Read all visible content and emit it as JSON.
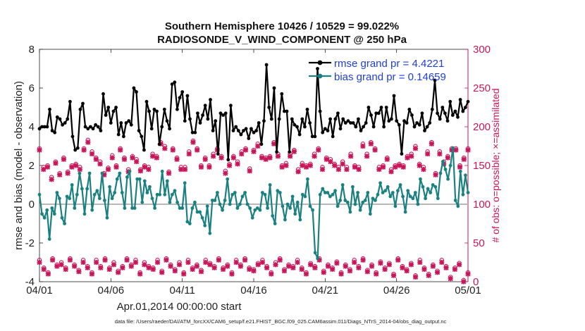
{
  "chart_data": {
    "type": "line",
    "title": "Southern Hemisphere 10426 / 10529 = 99.022%",
    "subtitle": "RADIOSONDE_V_WIND_COMPONENT @ 250 hPa",
    "xlabel": "Apr.01,2014 00:00:00 start",
    "ylabel": "rmse and bias (model - observation)",
    "y2label": "# of obs: o=possible; ×=assimilated",
    "footnote": "data file: /Users/raeder/DAI/ATM_forcXX/CAM6_setup/f.e21.FHIST_BGC.f09_025.CAM6assim.011/Diags_NTrS_2014-04/obs_diag_output.nc",
    "x_ticks": [
      "04/01",
      "04/06",
      "04/11",
      "04/16",
      "04/21",
      "04/26",
      "05/01"
    ],
    "xlim_days": [
      0,
      30
    ],
    "ylim": [
      -4,
      8
    ],
    "y_ticks": [
      "-4",
      "-2",
      "0",
      "2",
      "4",
      "6",
      "8"
    ],
    "y2lim": [
      0,
      300
    ],
    "y2_ticks": [
      "0",
      "50",
      "100",
      "150",
      "200",
      "250",
      "300"
    ],
    "colors": {
      "rmse": "#000000",
      "bias": "#1a8080",
      "obs": "#c8165a",
      "zero": "#b8b8b8",
      "legend_text": "#1f3fd6"
    },
    "series": [
      {
        "name": "rmse grand pr = 4.4221",
        "values": [
          3.9,
          4.0,
          4.0,
          4.0,
          4.9,
          3.8,
          3.7,
          4.5,
          4.4,
          4.1,
          4.2,
          4.4,
          5.3,
          3.5,
          2.8,
          2.9,
          4.9,
          5.2,
          4.0,
          3.9,
          4.0,
          3.9,
          4.1,
          4.0,
          3.8,
          5.7,
          4.6,
          5.0,
          4.2,
          4.8,
          5.0,
          3.6,
          4.2,
          3.5,
          4.2,
          4.3,
          4.1,
          6.0,
          5.8,
          3.8,
          3.5,
          2.8,
          5.3,
          4.8,
          3.9,
          4.9,
          4.8,
          3.1,
          4.0,
          4.9,
          4.3,
          3.9,
          6.2,
          6.3,
          4.9,
          5.5,
          5.8,
          4.3,
          5.6,
          4.4,
          3.7,
          3.7,
          4.7,
          4.2,
          4.6,
          5.1,
          4.4,
          5.4,
          3.8,
          4.3,
          2.6,
          4.7,
          4.6,
          4.7,
          2.3,
          5.1,
          3.8,
          4.0,
          3.8,
          3.6,
          3.8,
          3.9,
          3.4,
          3.9,
          3.7,
          3.8,
          4.2,
          3.1,
          4.3,
          7.2,
          5.0,
          4.4,
          6.0,
          2.7,
          4.4,
          5.7,
          4.8,
          4.8,
          2.7,
          4.4,
          4.1,
          4.0,
          3.6,
          4.4,
          4.0,
          4.9,
          4.2,
          3.5,
          3.5,
          7.0,
          4.8,
          3.7,
          3.9,
          3.8,
          4.4,
          3.5,
          4.4,
          4.7,
          3.9,
          4.4,
          4.2,
          4.3,
          4.2,
          4.2,
          4.0,
          4.4,
          3.8,
          4.0,
          4.2,
          5.0,
          4.6,
          4.0,
          4.7,
          4.7,
          5.0,
          4.0,
          5.0,
          4.3,
          4.4,
          5.6,
          4.3,
          4.1,
          2.6,
          4.3,
          4.2,
          4.9,
          4.6,
          4.0,
          4.2,
          4.1,
          4.7,
          3.8,
          4.0,
          4.2,
          4.9,
          6.4,
          4.7,
          4.4,
          5.0,
          4.7,
          4.3,
          5.3,
          4.6,
          4.8,
          4.5,
          5.4,
          4.8,
          5.0,
          5.3
        ]
      },
      {
        "name": "bias grand pr = 0.14659",
        "values": [
          0.5,
          -0.5,
          -0.7,
          -0.3,
          -1.8,
          -0.2,
          -0.5,
          0.6,
          0.3,
          -0.7,
          -1.0,
          0.4,
          0.3,
          1.0,
          -0.2,
          0.5,
          1.6,
          0.8,
          -0.5,
          0.8,
          1.6,
          -0.3,
          0.5,
          0.7,
          0.3,
          1.6,
          0.2,
          -0.7,
          0.9,
          0.3,
          0.6,
          1.3,
          1.6,
          0.6,
          -0.2,
          1.4,
          1.7,
          -0.2,
          -0.2,
          1.3,
          1.3,
          0.1,
          1.2,
          0.6,
          0.9,
          0.3,
          -0.2,
          0.5,
          0.5,
          1.7,
          0.5,
          1.2,
          0.1,
          0.5,
          0.7,
          0.1,
          -0.2,
          -0.2,
          1.1,
          -0.9,
          -1.0,
          -0.2,
          0.1,
          -0.4,
          -0.4,
          -0.7,
          -1.1,
          -0.1,
          -1.5,
          0.2,
          0.2,
          0.6,
          0.0,
          -0.3,
          0.2,
          1.3,
          0.0,
          0.5,
          0.6,
          -0.2,
          0.0,
          0.4,
          0.6,
          0.0,
          -0.2,
          -0.7,
          -0.3,
          -0.2,
          -0.3,
          0.6,
          0.5,
          -0.2,
          1.0,
          -0.6,
          -1.0,
          0.7,
          0.6,
          -0.1,
          -0.8,
          0.0,
          -0.2,
          0.4,
          -0.5,
          0.1,
          -0.8,
          0.5,
          0.4,
          1.3,
          -0.1,
          -0.3,
          -2.5,
          -2.8,
          0.5,
          0.8,
          0.6,
          0.6,
          0.4,
          0.5,
          0.7,
          -0.1,
          0.2,
          1.0,
          0.2,
          0.1,
          -0.4,
          0.9,
          0.0,
          0.6,
          -0.3,
          0.1,
          0.2,
          0.6,
          -0.5,
          0.3,
          0.2,
          0.5,
          1.1,
          0.6,
          0.7,
          0.9,
          0.4,
          0.6,
          -0.1,
          0.7,
          1.0,
          0.4,
          -0.4,
          0.7,
          0.4,
          0.3,
          0.6,
          0.0,
          1.3,
          0.9,
          0.3,
          0.8,
          0.6,
          1.0,
          0.9,
          0.3,
          1.6,
          2.2,
          1.8,
          1.3,
          2.0,
          2.9,
          0.2,
          -0.1,
          1.7,
          0.5,
          1.5,
          0.6
        ]
      }
    ],
    "obs_possible_high": [
      172,
      148,
      150,
      135,
      155,
      140,
      160,
      142,
      150,
      152,
      148,
      172,
      183,
      168,
      160,
      155,
      140,
      147,
      163,
      150,
      172,
      160,
      145,
      162,
      158,
      145,
      150,
      148,
      165,
      162,
      180,
      175,
      142,
      172,
      160,
      148,
      148,
      168,
      182,
      172,
      150,
      160,
      150,
      165,
      172,
      162,
      143,
      152,
      162,
      155,
      168,
      172,
      146,
      170,
      178,
      162,
      160,
      162,
      180,
      165,
      150,
      153,
      165,
      170,
      145,
      153,
      150,
      152,
      165,
      172,
      148,
      160,
      158,
      152,
      148,
      155,
      148,
      165,
      150,
      148,
      178,
      165,
      180,
      172,
      148,
      150,
      160,
      145,
      150,
      152,
      150,
      162,
      165,
      175,
      152,
      148,
      168,
      180,
      140,
      168,
      155,
      162,
      172,
      172,
      150,
      160,
      172
    ],
    "obs_assimilated_high": [
      170,
      145,
      148,
      132,
      153,
      138,
      158,
      140,
      148,
      150,
      145,
      170,
      180,
      165,
      158,
      152,
      138,
      145,
      160,
      148,
      170,
      158,
      142,
      160,
      155,
      143,
      148,
      145,
      162,
      160,
      178,
      172,
      140,
      170,
      158,
      145,
      145,
      165,
      180,
      170,
      148,
      158,
      148,
      162,
      170,
      160,
      140,
      150,
      160,
      152,
      165,
      170,
      143,
      168,
      175,
      160,
      158,
      160,
      178,
      162,
      148,
      150,
      162,
      168,
      142,
      150,
      148,
      150,
      162,
      170,
      145,
      158,
      155,
      150,
      145,
      152,
      145,
      162,
      148,
      145,
      175,
      162,
      178,
      170,
      145,
      148,
      158,
      142,
      148,
      150,
      148,
      160,
      162,
      172,
      150,
      145,
      165,
      178,
      138,
      165,
      152,
      160,
      170,
      170,
      148,
      158,
      170
    ],
    "obs_possible_low": [
      28,
      18,
      12,
      30,
      22,
      25,
      18,
      30,
      22,
      15,
      28,
      20,
      12,
      28,
      20,
      30,
      18,
      25,
      14,
      20,
      30,
      22,
      28,
      12,
      25,
      20,
      18,
      28,
      14,
      30,
      22,
      16,
      25,
      12,
      28,
      18,
      22,
      15,
      28,
      24,
      20,
      30,
      18,
      22,
      12,
      28,
      22,
      30,
      18,
      16,
      24,
      28,
      20,
      12,
      25,
      30,
      16,
      22,
      20,
      28,
      18,
      12,
      24,
      20,
      30,
      14,
      22,
      18,
      26,
      12,
      22,
      16,
      28,
      20,
      30,
      15,
      22,
      12,
      26,
      18,
      24,
      10,
      30,
      20,
      16,
      24,
      8,
      28,
      18,
      10,
      22,
      14,
      28,
      20,
      6,
      18,
      24,
      2,
      12
    ],
    "obs_assimilated_low": [
      25,
      16,
      10,
      28,
      20,
      22,
      16,
      28,
      20,
      13,
      25,
      18,
      10,
      25,
      18,
      28,
      16,
      22,
      12,
      18,
      28,
      20,
      25,
      10,
      22,
      18,
      16,
      25,
      12,
      28,
      20,
      14,
      22,
      10,
      25,
      16,
      20,
      13,
      25,
      22,
      18,
      28,
      16,
      20,
      10,
      25,
      20,
      28,
      16,
      14,
      22,
      25,
      18,
      10,
      22,
      28,
      14,
      20,
      18,
      25,
      16,
      10,
      22,
      18,
      28,
      12,
      20,
      16,
      24,
      10,
      20,
      14,
      25,
      18,
      28,
      13,
      20,
      10,
      24,
      16,
      22,
      8,
      28,
      18,
      14,
      22,
      6,
      25,
      16,
      8,
      20,
      12,
      25,
      18,
      4,
      16,
      22,
      0,
      10
    ]
  }
}
